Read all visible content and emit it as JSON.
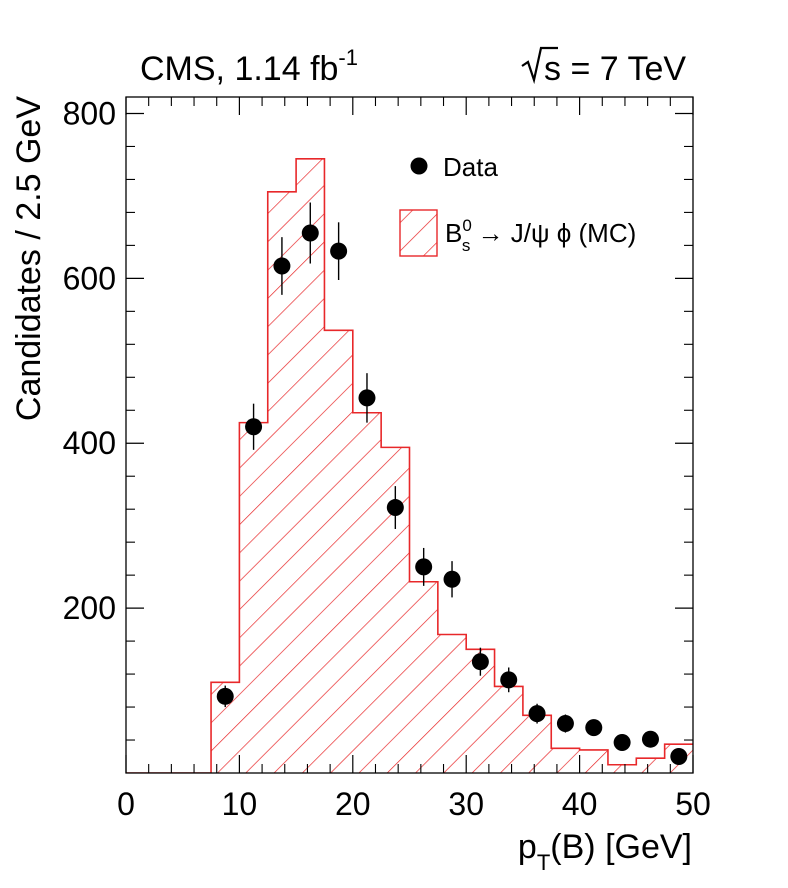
{
  "header": {
    "experiment_label": "CMS, 1.14 fb",
    "luminosity_exponent": "-1",
    "energy_prefix": "s = 7 TeV"
  },
  "legend": {
    "data_label": "Data",
    "mc_label_prefix": "B",
    "mc_label_sup": "0",
    "mc_label_sub": "s",
    "mc_label_suffix": " → J/ψ ϕ (MC)"
  },
  "chart_data": {
    "type": "histogram",
    "title": "CMS, 1.14 fb-1   √s = 7 TeV",
    "xlabel": "p_T(B) [GeV]",
    "ylabel": "Candidates / 2.5 GeV",
    "xlim": [
      0,
      50
    ],
    "ylim": [
      0,
      820
    ],
    "x_ticks": [
      0,
      10,
      20,
      30,
      40,
      50
    ],
    "y_ticks": [
      200,
      400,
      600,
      800
    ],
    "bin_edges": [
      0,
      7.5,
      10,
      12.5,
      15,
      17.5,
      20,
      22.5,
      25,
      27.5,
      30,
      32.5,
      35,
      37.5,
      40,
      42.5,
      45,
      47.5,
      50
    ],
    "mc_values": [
      0,
      110,
      425,
      705,
      745,
      537,
      437,
      395,
      232,
      168,
      150,
      105,
      70,
      30,
      28,
      10,
      18,
      35
    ],
    "data_points": [
      {
        "x": 8.75,
        "y": 93,
        "err": 13
      },
      {
        "x": 11.25,
        "y": 420,
        "err": 28
      },
      {
        "x": 13.75,
        "y": 615,
        "err": 35
      },
      {
        "x": 16.25,
        "y": 655,
        "err": 37
      },
      {
        "x": 18.75,
        "y": 633,
        "err": 35
      },
      {
        "x": 21.25,
        "y": 455,
        "err": 30
      },
      {
        "x": 23.75,
        "y": 322,
        "err": 26
      },
      {
        "x": 26.25,
        "y": 250,
        "err": 23
      },
      {
        "x": 28.75,
        "y": 235,
        "err": 22
      },
      {
        "x": 31.25,
        "y": 135,
        "err": 17
      },
      {
        "x": 33.75,
        "y": 113,
        "err": 15
      },
      {
        "x": 36.25,
        "y": 72,
        "err": 12
      },
      {
        "x": 38.75,
        "y": 60,
        "err": 11
      },
      {
        "x": 41.25,
        "y": 55,
        "err": 10
      },
      {
        "x": 43.75,
        "y": 37,
        "err": 8
      },
      {
        "x": 46.25,
        "y": 41,
        "err": 9
      },
      {
        "x": 48.75,
        "y": 20,
        "err": 6
      }
    ],
    "colors": {
      "mc_line": "#e8282a",
      "data_marker": "#000000"
    }
  }
}
